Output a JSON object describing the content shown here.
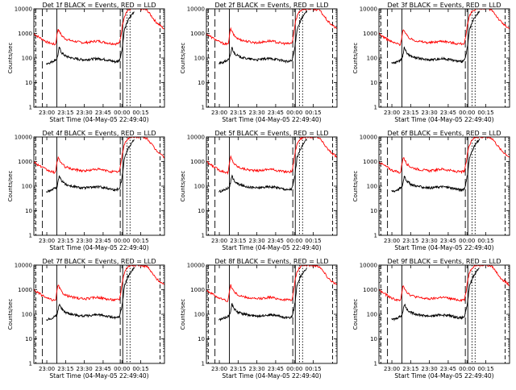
{
  "chart_data": [
    {
      "type": "line",
      "title": "Det 1f BLACK = Events, RED = LLD",
      "xlabel": "Start Time (04-May-05 22:49:40)",
      "ylabel": "Counts/sec",
      "yscale": "log",
      "ylim": [
        1,
        10000
      ],
      "xlim": [
        "22:49:40",
        "00:34:00"
      ],
      "x_ticks": [
        "23:00",
        "23:15",
        "23:30",
        "23:45",
        "00:00",
        "00:15"
      ],
      "y_ticks": [
        "1",
        "10",
        "100",
        "1000",
        "10000"
      ],
      "series": [
        {
          "name": "Events",
          "color": "#000000"
        },
        {
          "name": "LLD",
          "color": "#ff0000"
        }
      ]
    },
    {
      "type": "line",
      "title": "Det 2f BLACK = Events, RED = LLD",
      "xlabel": "Start Time (04-May-05 22:49:40)",
      "ylabel": "Counts/sec",
      "yscale": "log",
      "ylim": [
        1,
        10000
      ],
      "xlim": [
        "22:49:40",
        "00:34:00"
      ],
      "x_ticks": [
        "23:00",
        "23:15",
        "23:30",
        "23:45",
        "00:00",
        "00:15"
      ],
      "y_ticks": [
        "1",
        "10",
        "100",
        "1000",
        "10000"
      ],
      "series": [
        {
          "name": "Events",
          "color": "#000000"
        },
        {
          "name": "LLD",
          "color": "#ff0000"
        }
      ]
    },
    {
      "type": "line",
      "title": "Det 3f BLACK = Events, RED = LLD",
      "xlabel": "Start Time (04-May-05 22:49:40)",
      "ylabel": "Counts/sec",
      "yscale": "log",
      "ylim": [
        1,
        10000
      ],
      "xlim": [
        "22:49:40",
        "00:34:00"
      ],
      "x_ticks": [
        "23:00",
        "23:15",
        "23:30",
        "23:45",
        "00:00",
        "00:15"
      ],
      "y_ticks": [
        "1",
        "10",
        "100",
        "1000",
        "10000"
      ],
      "series": [
        {
          "name": "Events",
          "color": "#000000"
        },
        {
          "name": "LLD",
          "color": "#ff0000"
        }
      ]
    },
    {
      "type": "line",
      "title": "Det 4f BLACK = Events, RED = LLD",
      "xlabel": "Start Time (04-May-05 22:49:40)",
      "ylabel": "Counts/sec",
      "yscale": "log",
      "ylim": [
        1,
        10000
      ],
      "xlim": [
        "22:49:40",
        "00:34:00"
      ],
      "x_ticks": [
        "23:00",
        "23:15",
        "23:30",
        "23:45",
        "00:00",
        "00:15"
      ],
      "y_ticks": [
        "1",
        "10",
        "100",
        "1000",
        "10000"
      ],
      "series": [
        {
          "name": "Events",
          "color": "#000000"
        },
        {
          "name": "LLD",
          "color": "#ff0000"
        }
      ]
    },
    {
      "type": "line",
      "title": "Det 5f BLACK = Events, RED = LLD",
      "xlabel": "Start Time (04-May-05 22:49:40)",
      "ylabel": "Counts/sec",
      "yscale": "log",
      "ylim": [
        1,
        10000
      ],
      "xlim": [
        "22:49:40",
        "00:34:00"
      ],
      "x_ticks": [
        "23:00",
        "23:15",
        "23:30",
        "23:45",
        "00:00",
        "00:15"
      ],
      "y_ticks": [
        "1",
        "10",
        "100",
        "1000",
        "10000"
      ],
      "series": [
        {
          "name": "Events",
          "color": "#000000"
        },
        {
          "name": "LLD",
          "color": "#ff0000"
        }
      ]
    },
    {
      "type": "line",
      "title": "Det 6f BLACK = Events, RED = LLD",
      "xlabel": "Start Time (04-May-05 22:49:40)",
      "ylabel": "Counts/sec",
      "yscale": "log",
      "ylim": [
        1,
        10000
      ],
      "xlim": [
        "22:49:40",
        "00:34:00"
      ],
      "x_ticks": [
        "23:00",
        "23:15",
        "23:30",
        "23:45",
        "00:00",
        "00:15"
      ],
      "y_ticks": [
        "1",
        "10",
        "100",
        "1000",
        "10000"
      ],
      "series": [
        {
          "name": "Events",
          "color": "#000000"
        },
        {
          "name": "LLD",
          "color": "#ff0000"
        }
      ]
    },
    {
      "type": "line",
      "title": "Det 7f BLACK = Events, RED = LLD",
      "xlabel": "Start Time (04-May-05 22:49:40)",
      "ylabel": "Counts/sec",
      "yscale": "log",
      "ylim": [
        1,
        10000
      ],
      "xlim": [
        "22:49:40",
        "00:34:00"
      ],
      "x_ticks": [
        "23:00",
        "23:15",
        "23:30",
        "23:45",
        "00:00",
        "00:15"
      ],
      "y_ticks": [
        "1",
        "10",
        "100",
        "1000",
        "10000"
      ],
      "series": [
        {
          "name": "Events",
          "color": "#000000"
        },
        {
          "name": "LLD",
          "color": "#ff0000"
        }
      ]
    },
    {
      "type": "line",
      "title": "Det 8f BLACK = Events, RED = LLD",
      "xlabel": "Start Time (04-May-05 22:49:40)",
      "ylabel": "Counts/sec",
      "yscale": "log",
      "ylim": [
        1,
        10000
      ],
      "xlim": [
        "22:49:40",
        "00:34:00"
      ],
      "x_ticks": [
        "23:00",
        "23:15",
        "23:30",
        "23:45",
        "00:00",
        "00:15"
      ],
      "y_ticks": [
        "1",
        "10",
        "100",
        "1000",
        "10000"
      ],
      "series": [
        {
          "name": "Events",
          "color": "#000000"
        },
        {
          "name": "LLD",
          "color": "#ff0000"
        }
      ]
    },
    {
      "type": "line",
      "title": "Det 9f BLACK = Events, RED = LLD",
      "xlabel": "Start Time (04-May-05 22:49:40)",
      "ylabel": "Counts/sec",
      "yscale": "log",
      "ylim": [
        1,
        10000
      ],
      "xlim": [
        "22:49:40",
        "00:34:00"
      ],
      "x_ticks": [
        "23:00",
        "23:15",
        "23:30",
        "23:45",
        "00:00",
        "00:15"
      ],
      "y_ticks": [
        "1",
        "10",
        "100",
        "1000",
        "10000"
      ],
      "series": [
        {
          "name": "Events",
          "color": "#000000"
        },
        {
          "name": "LLD",
          "color": "#ff0000"
        }
      ]
    }
  ],
  "common": {
    "events_profile": [
      [
        "22:59:40",
        60
      ],
      [
        "23:02:40",
        65
      ],
      [
        "23:08:00",
        90
      ],
      [
        "23:09:00",
        140
      ],
      [
        "23:10:00",
        280
      ],
      [
        "23:11:00",
        200
      ],
      [
        "23:12:00",
        160
      ],
      [
        "23:15:00",
        120
      ],
      [
        "23:20:00",
        100
      ],
      [
        "23:25:00",
        90
      ],
      [
        "23:30:00",
        85
      ],
      [
        "23:35:00",
        90
      ],
      [
        "23:40:00",
        95
      ],
      [
        "23:45:00",
        90
      ],
      [
        "23:50:00",
        80
      ],
      [
        "23:55:00",
        70
      ],
      [
        "23:58:00",
        80
      ],
      [
        "23:59:30",
        160
      ],
      [
        "00:00:30",
        300
      ],
      [
        "00:02:00",
        1400
      ],
      [
        "00:05:00",
        3500
      ],
      [
        "00:08:00",
        6000
      ],
      [
        "00:10:00",
        8000
      ]
    ],
    "lld_profile": [
      [
        "22:49:40",
        1000
      ],
      [
        "22:52:00",
        800
      ],
      [
        "22:56:00",
        600
      ],
      [
        "23:00:00",
        450
      ],
      [
        "23:03:00",
        400
      ],
      [
        "23:07:00",
        350
      ],
      [
        "23:08:00",
        800
      ],
      [
        "23:09:00",
        1600
      ],
      [
        "23:10:00",
        1200
      ],
      [
        "23:12:00",
        800
      ],
      [
        "23:15:00",
        600
      ],
      [
        "23:20:00",
        500
      ],
      [
        "23:25:00",
        450
      ],
      [
        "23:30:00",
        420
      ],
      [
        "23:35:00",
        450
      ],
      [
        "23:40:00",
        500
      ],
      [
        "23:45:00",
        450
      ],
      [
        "23:50:00",
        400
      ],
      [
        "23:55:00",
        380
      ],
      [
        "23:58:00",
        400
      ],
      [
        "23:59:30",
        1000
      ],
      [
        "00:00:30",
        2500
      ],
      [
        "00:02:00",
        5000
      ],
      [
        "00:04:00",
        8000
      ],
      [
        "00:07:00",
        10000
      ],
      [
        "00:15:00",
        10000
      ],
      [
        "00:20:00",
        9000
      ],
      [
        "00:27:00",
        3000
      ],
      [
        "00:34:00",
        1500
      ]
    ],
    "vertical_markers": {
      "dashed": [
        "22:51:10",
        "00:30:30"
      ],
      "long_dash": [
        "22:56:30",
        "23:58:40"
      ],
      "solid": [
        "23:08:00",
        "00:00:40"
      ],
      "dotted": [
        "00:04:00",
        "00:06:30"
      ]
    }
  }
}
